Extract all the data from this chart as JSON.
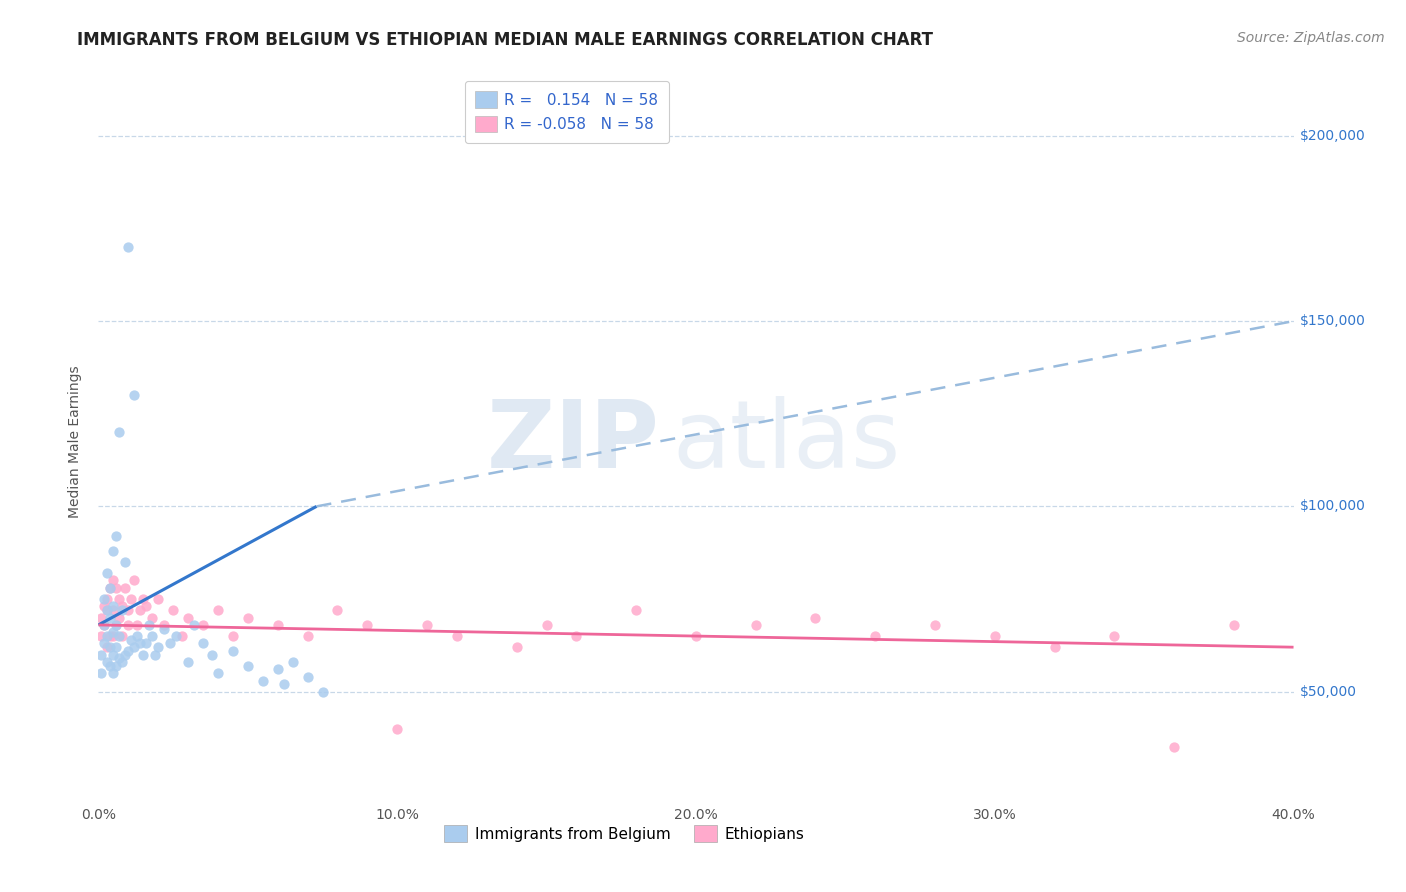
{
  "title": "IMMIGRANTS FROM BELGIUM VS ETHIOPIAN MEDIAN MALE EARNINGS CORRELATION CHART",
  "source_text": "Source: ZipAtlas.com",
  "ylabel": "Median Male Earnings",
  "xlim": [
    0.0,
    0.4
  ],
  "ylim": [
    20000,
    215000
  ],
  "xtick_labels": [
    "0.0%",
    "10.0%",
    "20.0%",
    "30.0%",
    "40.0%"
  ],
  "xtick_vals": [
    0.0,
    0.1,
    0.2,
    0.3,
    0.4
  ],
  "ytick_vals": [
    50000,
    100000,
    150000,
    200000
  ],
  "ytick_labels": [
    "$50,000",
    "$100,000",
    "$150,000",
    "$200,000"
  ],
  "background_color": "#ffffff",
  "grid_color": "#c8d8e8",
  "scatter_belgium_color": "#aaccee",
  "scatter_ethiopia_color": "#ffaacc",
  "line_belgium_color": "#3377cc",
  "line_ethiopia_color": "#ee6699",
  "dashed_line_color": "#99bbdd",
  "r_belgium": 0.154,
  "r_ethiopia": -0.058,
  "n_belgium": 58,
  "n_ethiopia": 58,
  "legend_label_belgium": "Immigrants from Belgium",
  "legend_label_ethiopia": "Ethiopians",
  "watermark_zip": "ZIP",
  "watermark_atlas": "atlas",
  "title_fontsize": 12,
  "axis_label_fontsize": 10,
  "tick_fontsize": 10,
  "legend_fontsize": 11,
  "source_fontsize": 10,
  "belgium_scatter_x": [
    0.001,
    0.001,
    0.002,
    0.002,
    0.002,
    0.003,
    0.003,
    0.003,
    0.003,
    0.004,
    0.004,
    0.004,
    0.004,
    0.005,
    0.005,
    0.005,
    0.005,
    0.005,
    0.006,
    0.006,
    0.006,
    0.006,
    0.007,
    0.007,
    0.007,
    0.008,
    0.008,
    0.009,
    0.009,
    0.01,
    0.01,
    0.011,
    0.012,
    0.012,
    0.013,
    0.014,
    0.015,
    0.016,
    0.017,
    0.018,
    0.019,
    0.02,
    0.022,
    0.024,
    0.026,
    0.03,
    0.032,
    0.035,
    0.038,
    0.04,
    0.045,
    0.05,
    0.055,
    0.06,
    0.062,
    0.065,
    0.07,
    0.075
  ],
  "belgium_scatter_y": [
    60000,
    55000,
    63000,
    68000,
    75000,
    58000,
    65000,
    72000,
    82000,
    57000,
    62000,
    70000,
    78000,
    55000,
    60000,
    66000,
    73000,
    88000,
    57000,
    62000,
    68000,
    92000,
    59000,
    65000,
    120000,
    58000,
    72000,
    60000,
    85000,
    61000,
    170000,
    64000,
    62000,
    130000,
    65000,
    63000,
    60000,
    63000,
    68000,
    65000,
    60000,
    62000,
    67000,
    63000,
    65000,
    58000,
    68000,
    63000,
    60000,
    55000,
    61000,
    57000,
    53000,
    56000,
    52000,
    58000,
    54000,
    50000
  ],
  "ethiopia_scatter_x": [
    0.001,
    0.001,
    0.002,
    0.002,
    0.003,
    0.003,
    0.003,
    0.004,
    0.004,
    0.005,
    0.005,
    0.005,
    0.006,
    0.006,
    0.007,
    0.007,
    0.008,
    0.008,
    0.009,
    0.01,
    0.01,
    0.011,
    0.012,
    0.013,
    0.014,
    0.015,
    0.016,
    0.018,
    0.02,
    0.022,
    0.025,
    0.028,
    0.03,
    0.035,
    0.04,
    0.045,
    0.05,
    0.06,
    0.07,
    0.08,
    0.09,
    0.1,
    0.11,
    0.12,
    0.14,
    0.15,
    0.16,
    0.18,
    0.2,
    0.22,
    0.24,
    0.26,
    0.28,
    0.3,
    0.32,
    0.34,
    0.36,
    0.38
  ],
  "ethiopia_scatter_y": [
    70000,
    65000,
    73000,
    68000,
    75000,
    72000,
    62000,
    78000,
    65000,
    80000,
    72000,
    65000,
    78000,
    68000,
    75000,
    70000,
    73000,
    65000,
    78000,
    72000,
    68000,
    75000,
    80000,
    68000,
    72000,
    75000,
    73000,
    70000,
    75000,
    68000,
    72000,
    65000,
    70000,
    68000,
    72000,
    65000,
    70000,
    68000,
    65000,
    72000,
    68000,
    40000,
    68000,
    65000,
    62000,
    68000,
    65000,
    72000,
    65000,
    68000,
    70000,
    65000,
    68000,
    65000,
    62000,
    65000,
    35000,
    68000
  ],
  "belgium_line_x": [
    0.0,
    0.073
  ],
  "belgium_line_y": [
    68000,
    100000
  ],
  "dashed_line_x": [
    0.073,
    0.4
  ],
  "dashed_line_y": [
    100000,
    150000
  ],
  "ethiopia_line_x": [
    0.0,
    0.4
  ],
  "ethiopia_line_y": [
    68000,
    62000
  ]
}
